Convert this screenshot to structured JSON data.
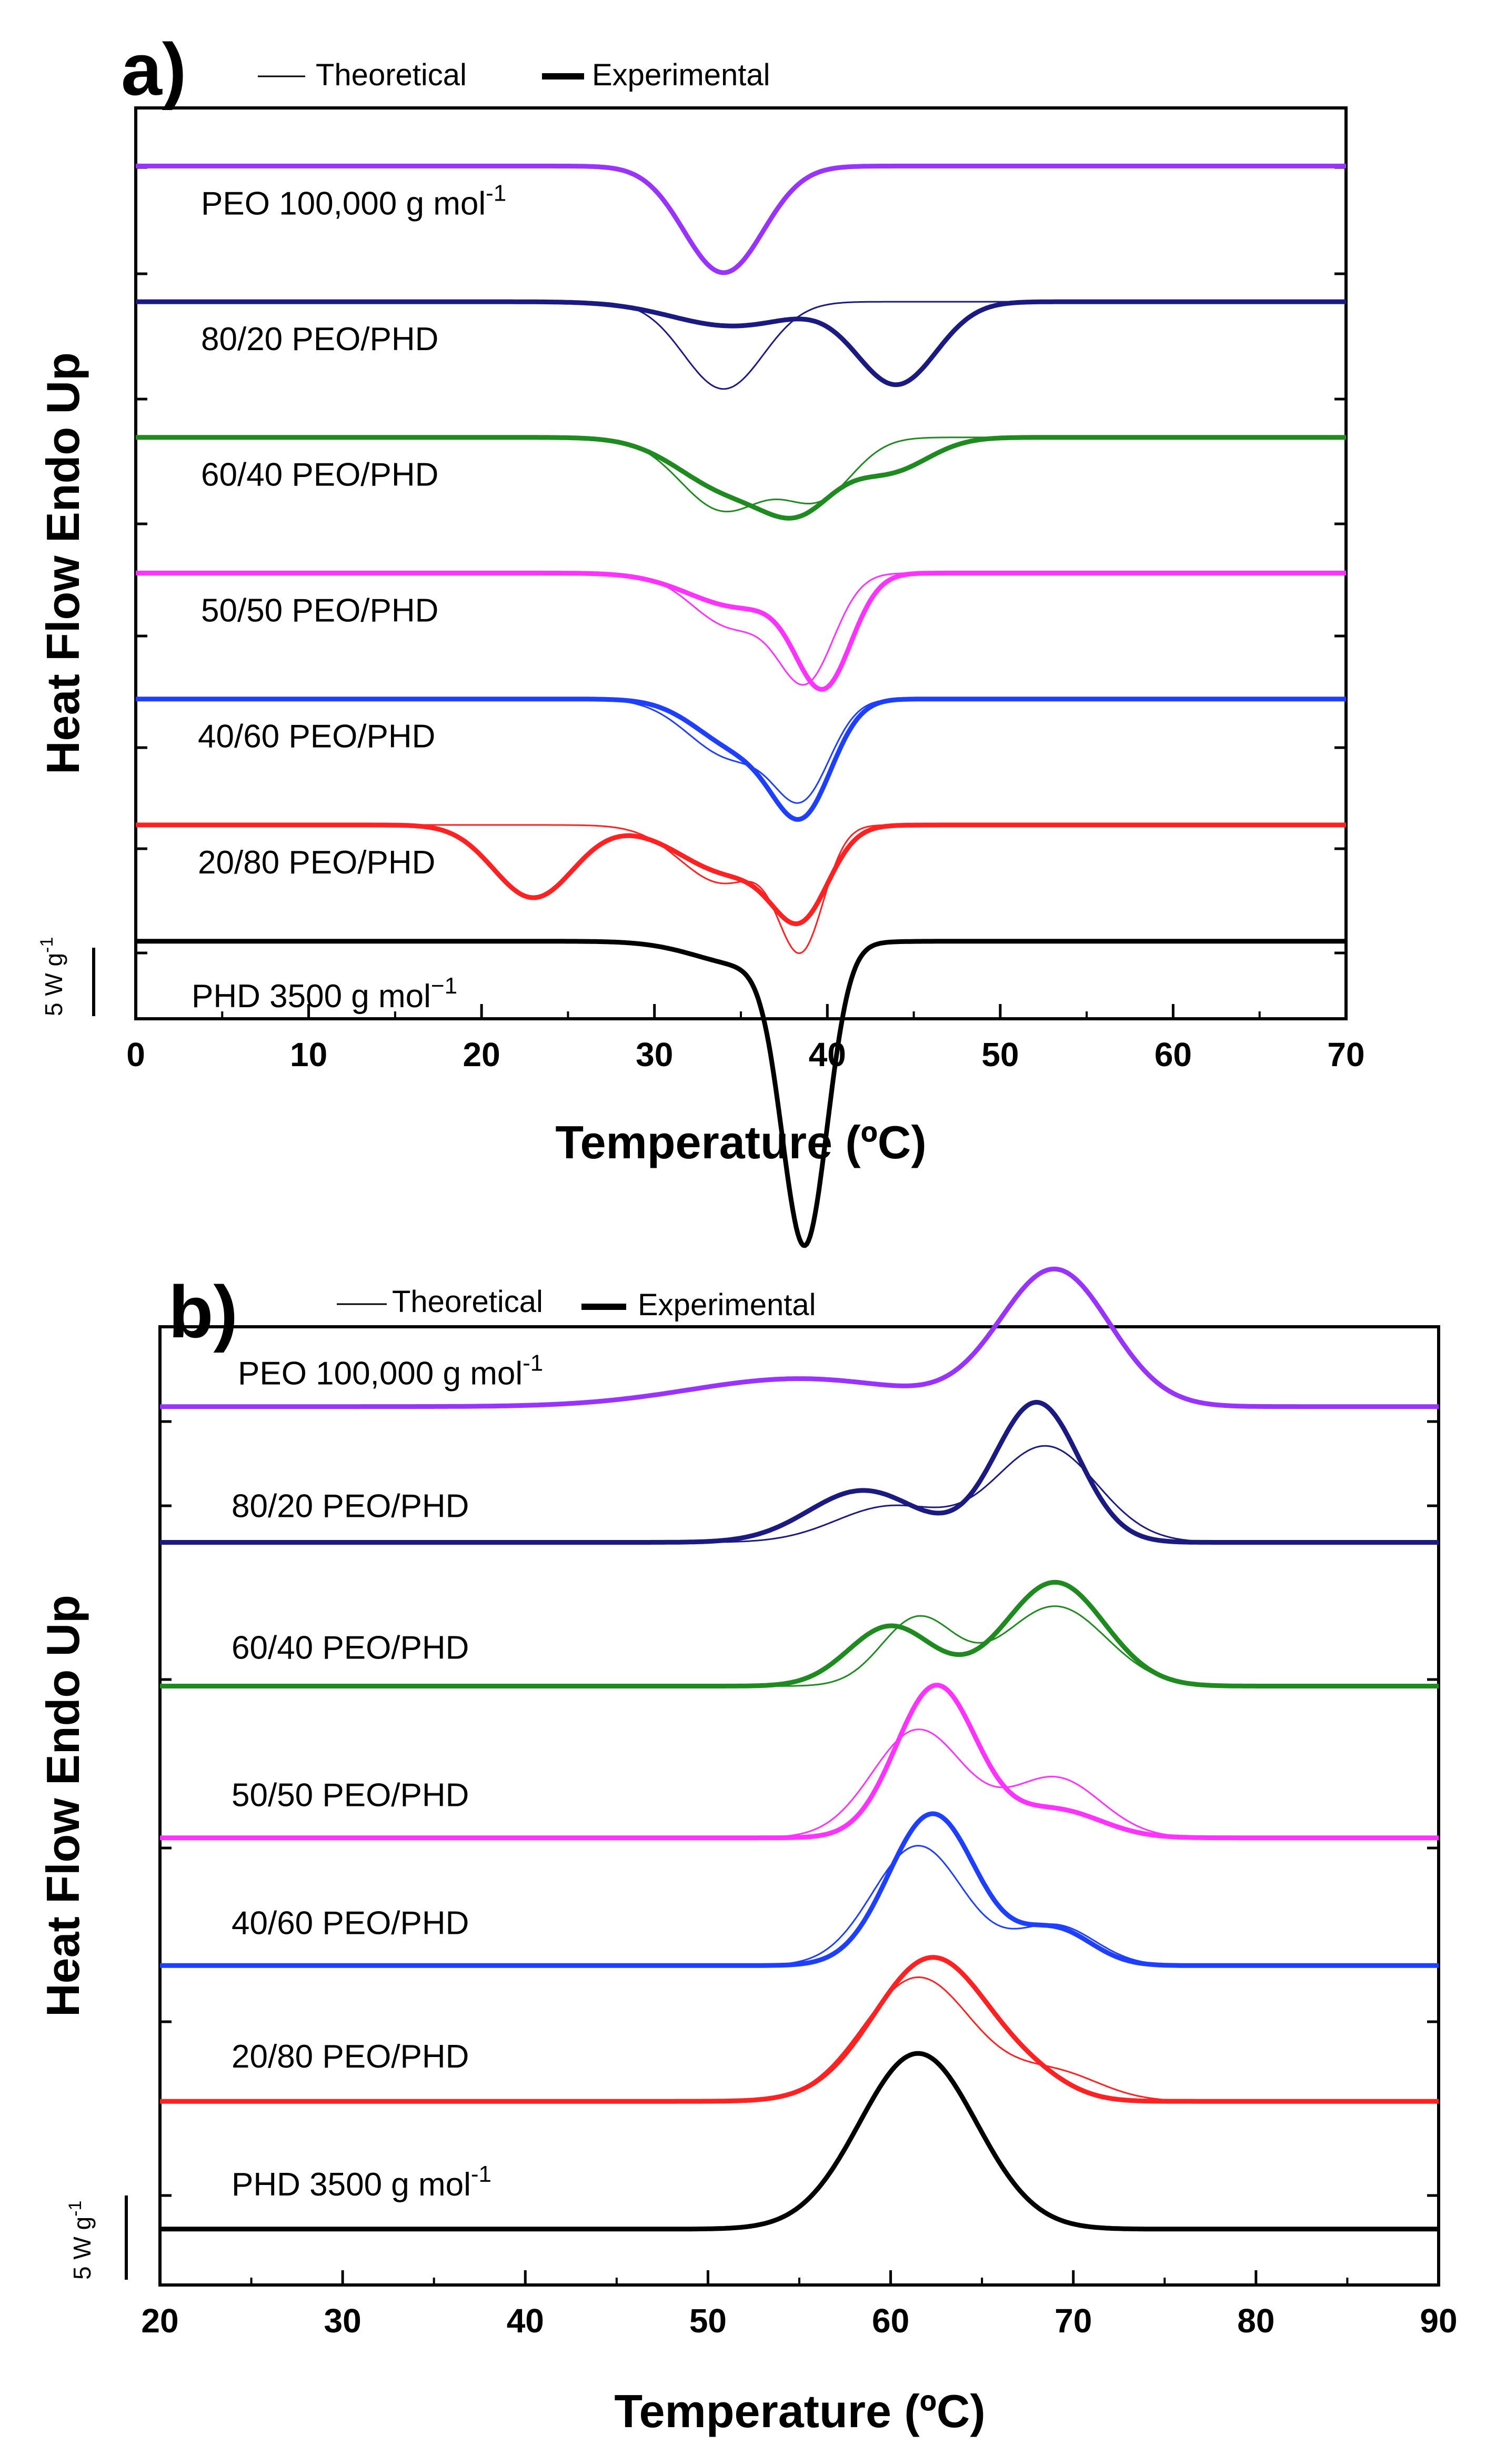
{
  "figure": {
    "legend_theoretical": "Theoretical",
    "legend_experimental": "Experimental",
    "scale_bar_label": "5 W g",
    "scale_bar_exp": "-1"
  },
  "chart_data": [
    {
      "panel": "a)",
      "type": "line",
      "title": "",
      "xlabel": "Temperature (ºC)",
      "ylabel": "Heat Flow Endo Up",
      "xlim": [
        0,
        70
      ],
      "xticks": [
        0,
        10,
        20,
        30,
        40,
        50,
        60,
        70
      ],
      "y_units": "W g-1 (offset traces)",
      "scale_bar_W_g": 5,
      "grid": false,
      "series": [
        {
          "name": "PEO 100,000 g mol",
          "sup": "-1",
          "color": "#9933ff",
          "baseline": 32,
          "exp_peaks": [
            [
              34,
              -1.1,
              2.3
            ]
          ],
          "theo_peaks": null
        },
        {
          "name": "80/20 PEO/PHD",
          "sup": "",
          "color": "#1a1a80",
          "baseline": 25,
          "exp_peaks": [
            [
              34.5,
              -0.25,
              3.5
            ],
            [
              44,
              -0.85,
              2.3
            ]
          ],
          "theo_peaks": [
            [
              34,
              -0.9,
              2.3
            ]
          ]
        },
        {
          "name": "60/40 PEO/PHD",
          "sup": "",
          "color": "#1f8a1f",
          "baseline": 18,
          "exp_peaks": [
            [
              34.5,
              -0.55,
              3
            ],
            [
              38.5,
              -0.55,
              2
            ],
            [
              43.5,
              -0.35,
              2.3
            ]
          ],
          "theo_peaks": [
            [
              34,
              -0.75,
              2.5
            ],
            [
              39.5,
              -0.6,
              2
            ]
          ]
        },
        {
          "name": "50/50 PEO/PHD",
          "sup": "",
          "color": "#ff33ff",
          "baseline": 11,
          "exp_peaks": [
            [
              35,
              -0.35,
              3
            ],
            [
              39.8,
              -1.1,
              1.6
            ]
          ],
          "theo_peaks": [
            [
              34.5,
              -0.55,
              2.3
            ],
            [
              38.8,
              -1.05,
              1.6
            ]
          ]
        },
        {
          "name": "40/60 PEO/PHD",
          "sup": "",
          "color": "#1f3fff",
          "baseline": 4.5,
          "exp_peaks": [
            [
              35,
              -0.5,
              2.5
            ],
            [
              38.6,
              -1.05,
              1.7
            ]
          ],
          "theo_peaks": [
            [
              34.5,
              -0.6,
              2.5
            ],
            [
              38.6,
              -0.9,
              1.6
            ]
          ]
        },
        {
          "name": "20/80 PEO/PHD",
          "sup": "",
          "color": "#ff2222",
          "baseline": -2,
          "exp_peaks": [
            [
              23,
              -0.75,
              2.3
            ],
            [
              34.5,
              -0.5,
              3
            ],
            [
              38.5,
              -0.8,
              1.6
            ]
          ],
          "theo_peaks": [
            [
              34,
              -0.6,
              2.5
            ],
            [
              38.5,
              -1.2,
              1.3
            ]
          ]
        },
        {
          "name": "PHD 3500 g mol",
          "sup": "−1",
          "color": "#000000",
          "baseline": -8,
          "exp_peaks": [
            [
              35.5,
              -0.25,
              3
            ],
            [
              38.7,
              -3.0,
              1.3
            ]
          ],
          "theo_peaks": null
        }
      ]
    },
    {
      "panel": "b)",
      "type": "line",
      "title": "",
      "xlabel": "Temperature (ºC)",
      "ylabel": "Heat Flow Endo Up",
      "xlim": [
        20,
        90
      ],
      "xticks": [
        20,
        30,
        40,
        50,
        60,
        70,
        80,
        90
      ],
      "y_units": "W g-1 (offset traces)",
      "scale_bar_W_g": 5,
      "grid": false,
      "series": [
        {
          "name": "PEO 100,000 g mol",
          "sup": "-1",
          "color": "#9933ff",
          "baseline": 32,
          "exp_peaks": [
            [
              55,
              0.35,
              6
            ],
            [
              69,
              1.7,
              3
            ]
          ],
          "theo_peaks": null
        },
        {
          "name": "80/20 PEO/PHD",
          "sup": "",
          "color": "#1a1a80",
          "baseline": 23.5,
          "exp_peaks": [
            [
              58.5,
              0.65,
              3
            ],
            [
              68,
              1.75,
              2.3
            ]
          ],
          "theo_peaks": [
            [
              60,
              0.45,
              3
            ],
            [
              68.5,
              1.2,
              2.8
            ]
          ]
        },
        {
          "name": "60/40 PEO/PHD",
          "sup": "",
          "color": "#1f8a1f",
          "baseline": 14.5,
          "exp_peaks": [
            [
              60,
              0.75,
              2.3
            ],
            [
              69,
              1.3,
              2.7
            ]
          ],
          "theo_peaks": [
            [
              61.5,
              0.85,
              2
            ],
            [
              69,
              1.0,
              2.8
            ]
          ]
        },
        {
          "name": "50/50 PEO/PHD",
          "sup": "",
          "color": "#ff33ff",
          "baseline": 5,
          "exp_peaks": [
            [
              62.5,
              1.9,
              2.2
            ],
            [
              69,
              0.35,
              2.5
            ]
          ],
          "theo_peaks": [
            [
              61.5,
              1.35,
              2.5
            ],
            [
              69,
              0.75,
              2.5
            ]
          ]
        },
        {
          "name": "40/60 PEO/PHD",
          "sup": "",
          "color": "#1f3fff",
          "baseline": -3,
          "exp_peaks": [
            [
              62.3,
              1.9,
              2.4
            ],
            [
              69,
              0.45,
              2
            ]
          ],
          "theo_peaks": [
            [
              61.5,
              1.5,
              2.5
            ],
            [
              69,
              0.5,
              2.2
            ]
          ]
        },
        {
          "name": "20/80 PEO/PHD",
          "sup": "",
          "color": "#ff2222",
          "baseline": -11.5,
          "exp_peaks": [
            [
              62.3,
              1.8,
              3.2
            ],
            [
              68,
              0.15,
              2
            ]
          ],
          "theo_peaks": [
            [
              61.5,
              1.55,
              3
            ],
            [
              69,
              0.35,
              2.5
            ]
          ]
        },
        {
          "name": "PHD 3500 g mol",
          "sup": "-1",
          "color": "#000000",
          "baseline": -19.5,
          "exp_peaks": [
            [
              61.5,
              2.2,
              3.2
            ]
          ],
          "theo_peaks": null
        }
      ]
    }
  ]
}
